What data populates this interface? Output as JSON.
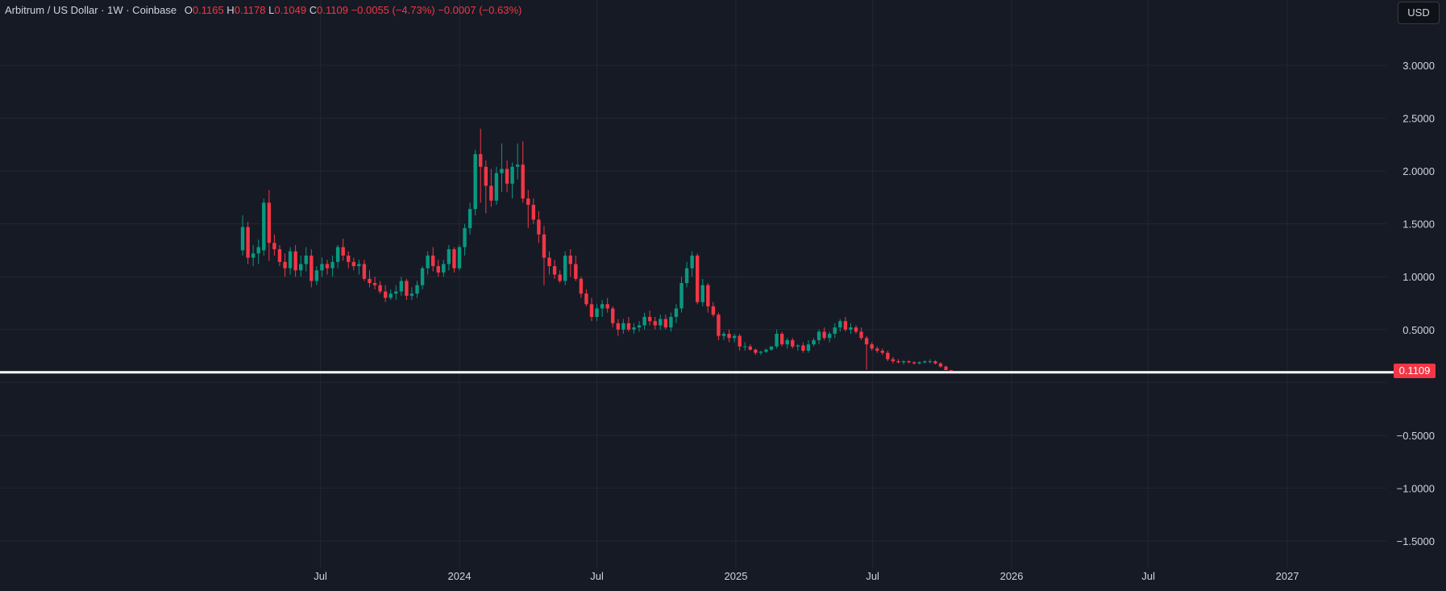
{
  "legend": {
    "symbol": "Arbitrum / US Dollar · 1W · Coinbase",
    "o_label": "O",
    "o_value": "0.1165",
    "h_label": "H",
    "h_value": "0.1178",
    "l_label": "L",
    "l_value": "0.1049",
    "c_label": "C",
    "c_value": "0.1109",
    "change": "−0.0055 (−4.73%)",
    "change2": "−0.0007 (−0.63%)"
  },
  "currency_button": "USD",
  "last_price_label": "0.1109",
  "colors": {
    "background": "#161a25",
    "up": "#089981",
    "down": "#f23645",
    "grid": "#232734",
    "price_line": "#ffffff"
  },
  "chart_data": {
    "type": "candlestick",
    "interval": "1W",
    "ylim": [
      -1.75,
      3.5
    ],
    "y_ticks": [
      "3.0000",
      "2.5000",
      "2.0000",
      "1.5000",
      "1.0000",
      "0.5000",
      "−0.5000",
      "−1.0000",
      "−1.5000"
    ],
    "y_tick_values": [
      3.0,
      2.5,
      2.0,
      1.5,
      1.0,
      0.5,
      -0.5,
      -1.0,
      -1.5
    ],
    "x_ticks": [
      {
        "label": "Jul",
        "date": "2023-07-01"
      },
      {
        "label": "2024",
        "date": "2024-01-01"
      },
      {
        "label": "Jul",
        "date": "2024-07-01"
      },
      {
        "label": "2025",
        "date": "2025-01-01"
      },
      {
        "label": "Jul",
        "date": "2025-07-01"
      },
      {
        "label": "2026",
        "date": "2026-01-01"
      },
      {
        "label": "Jul",
        "date": "2026-07-01"
      },
      {
        "label": "2027",
        "date": "2027-01-01"
      }
    ],
    "first_bar_date": "2023-03-20",
    "horizontal_line": 0.1109,
    "candles": [
      [
        1.25,
        1.58,
        1.2,
        1.47
      ],
      [
        1.47,
        1.52,
        1.12,
        1.18
      ],
      [
        1.18,
        1.3,
        1.1,
        1.22
      ],
      [
        1.22,
        1.35,
        1.12,
        1.28
      ],
      [
        1.25,
        1.74,
        1.2,
        1.7
      ],
      [
        1.7,
        1.82,
        1.15,
        1.32
      ],
      [
        1.32,
        1.4,
        1.2,
        1.26
      ],
      [
        1.26,
        1.3,
        1.1,
        1.14
      ],
      [
        1.14,
        1.22,
        1.0,
        1.08
      ],
      [
        1.08,
        1.28,
        1.02,
        1.24
      ],
      [
        1.24,
        1.3,
        1.0,
        1.06
      ],
      [
        1.06,
        1.2,
        1.0,
        1.12
      ],
      [
        1.12,
        1.28,
        1.05,
        1.2
      ],
      [
        1.2,
        1.26,
        0.9,
        0.96
      ],
      [
        0.96,
        1.1,
        0.92,
        1.06
      ],
      [
        1.06,
        1.18,
        1.0,
        1.12
      ],
      [
        1.12,
        1.16,
        1.02,
        1.08
      ],
      [
        1.08,
        1.2,
        1.0,
        1.14
      ],
      [
        1.14,
        1.3,
        1.08,
        1.28
      ],
      [
        1.28,
        1.36,
        1.15,
        1.2
      ],
      [
        1.2,
        1.24,
        1.08,
        1.14
      ],
      [
        1.14,
        1.18,
        1.06,
        1.1
      ],
      [
        1.1,
        1.16,
        1.02,
        1.12
      ],
      [
        1.12,
        1.16,
        0.96,
        0.98
      ],
      [
        0.98,
        1.06,
        0.9,
        0.94
      ],
      [
        0.94,
        1.0,
        0.88,
        0.92
      ],
      [
        0.92,
        0.96,
        0.84,
        0.86
      ],
      [
        0.86,
        0.92,
        0.76,
        0.8
      ],
      [
        0.8,
        0.88,
        0.78,
        0.84
      ],
      [
        0.84,
        0.92,
        0.78,
        0.86
      ],
      [
        0.86,
        1.0,
        0.82,
        0.96
      ],
      [
        0.96,
        0.98,
        0.78,
        0.82
      ],
      [
        0.82,
        0.9,
        0.78,
        0.84
      ],
      [
        0.84,
        0.96,
        0.8,
        0.92
      ],
      [
        0.92,
        1.1,
        0.88,
        1.08
      ],
      [
        1.08,
        1.24,
        1.02,
        1.2
      ],
      [
        1.2,
        1.28,
        1.05,
        1.1
      ],
      [
        1.1,
        1.16,
        1.0,
        1.04
      ],
      [
        1.04,
        1.16,
        1.0,
        1.12
      ],
      [
        1.12,
        1.3,
        1.06,
        1.26
      ],
      [
        1.26,
        1.28,
        1.04,
        1.08
      ],
      [
        1.08,
        1.3,
        1.06,
        1.28
      ],
      [
        1.28,
        1.5,
        1.2,
        1.46
      ],
      [
        1.46,
        1.7,
        1.4,
        1.64
      ],
      [
        1.64,
        2.2,
        1.58,
        2.16
      ],
      [
        2.16,
        2.4,
        1.7,
        2.04
      ],
      [
        2.04,
        2.1,
        1.6,
        1.86
      ],
      [
        1.86,
        2.02,
        1.66,
        1.72
      ],
      [
        1.72,
        2.04,
        1.68,
        1.98
      ],
      [
        1.98,
        2.26,
        1.8,
        2.02
      ],
      [
        2.02,
        2.1,
        1.8,
        1.88
      ],
      [
        1.88,
        2.08,
        1.74,
        2.04
      ],
      [
        2.04,
        2.26,
        1.92,
        2.06
      ],
      [
        2.06,
        2.28,
        1.7,
        1.74
      ],
      [
        1.74,
        1.82,
        1.46,
        1.68
      ],
      [
        1.68,
        1.74,
        1.5,
        1.54
      ],
      [
        1.54,
        1.62,
        1.32,
        1.4
      ],
      [
        1.4,
        1.48,
        0.92,
        1.18
      ],
      [
        1.18,
        1.24,
        1.02,
        1.1
      ],
      [
        1.1,
        1.16,
        0.98,
        1.02
      ],
      [
        1.02,
        1.06,
        0.94,
        0.96
      ],
      [
        0.96,
        1.24,
        0.92,
        1.2
      ],
      [
        1.2,
        1.26,
        1.0,
        1.12
      ],
      [
        1.12,
        1.2,
        0.96,
        0.98
      ],
      [
        0.98,
        1.0,
        0.8,
        0.84
      ],
      [
        0.84,
        0.88,
        0.72,
        0.74
      ],
      [
        0.74,
        0.8,
        0.58,
        0.62
      ],
      [
        0.62,
        0.74,
        0.58,
        0.7
      ],
      [
        0.7,
        0.78,
        0.62,
        0.74
      ],
      [
        0.74,
        0.8,
        0.66,
        0.7
      ],
      [
        0.7,
        0.72,
        0.52,
        0.56
      ],
      [
        0.56,
        0.6,
        0.44,
        0.5
      ],
      [
        0.5,
        0.6,
        0.46,
        0.56
      ],
      [
        0.56,
        0.62,
        0.48,
        0.5
      ],
      [
        0.5,
        0.56,
        0.46,
        0.52
      ],
      [
        0.52,
        0.58,
        0.48,
        0.54
      ],
      [
        0.54,
        0.66,
        0.5,
        0.62
      ],
      [
        0.62,
        0.68,
        0.54,
        0.58
      ],
      [
        0.58,
        0.62,
        0.5,
        0.54
      ],
      [
        0.54,
        0.64,
        0.5,
        0.6
      ],
      [
        0.6,
        0.64,
        0.5,
        0.52
      ],
      [
        0.52,
        0.66,
        0.48,
        0.62
      ],
      [
        0.62,
        0.74,
        0.56,
        0.7
      ],
      [
        0.7,
        1.0,
        0.66,
        0.94
      ],
      [
        0.94,
        1.14,
        0.9,
        1.08
      ],
      [
        1.08,
        1.24,
        1.0,
        1.2
      ],
      [
        1.2,
        1.22,
        0.74,
        0.76
      ],
      [
        0.76,
        0.98,
        0.72,
        0.92
      ],
      [
        0.92,
        0.94,
        0.66,
        0.72
      ],
      [
        0.72,
        0.76,
        0.62,
        0.64
      ],
      [
        0.64,
        0.66,
        0.4,
        0.44
      ],
      [
        0.44,
        0.48,
        0.4,
        0.46
      ],
      [
        0.46,
        0.5,
        0.38,
        0.42
      ],
      [
        0.42,
        0.46,
        0.38,
        0.44
      ],
      [
        0.44,
        0.46,
        0.3,
        0.34
      ],
      [
        0.34,
        0.38,
        0.3,
        0.34
      ],
      [
        0.34,
        0.36,
        0.3,
        0.31
      ],
      [
        0.31,
        0.32,
        0.26,
        0.28
      ],
      [
        0.28,
        0.3,
        0.26,
        0.29
      ],
      [
        0.29,
        0.32,
        0.28,
        0.31
      ],
      [
        0.31,
        0.34,
        0.3,
        0.34
      ],
      [
        0.34,
        0.5,
        0.32,
        0.46
      ],
      [
        0.46,
        0.48,
        0.34,
        0.36
      ],
      [
        0.36,
        0.42,
        0.32,
        0.4
      ],
      [
        0.4,
        0.42,
        0.32,
        0.34
      ],
      [
        0.34,
        0.36,
        0.3,
        0.35
      ],
      [
        0.35,
        0.38,
        0.28,
        0.3
      ],
      [
        0.3,
        0.4,
        0.28,
        0.36
      ],
      [
        0.36,
        0.42,
        0.34,
        0.4
      ],
      [
        0.4,
        0.5,
        0.36,
        0.48
      ],
      [
        0.48,
        0.52,
        0.4,
        0.42
      ],
      [
        0.42,
        0.48,
        0.38,
        0.46
      ],
      [
        0.46,
        0.56,
        0.42,
        0.52
      ],
      [
        0.52,
        0.6,
        0.48,
        0.58
      ],
      [
        0.58,
        0.62,
        0.48,
        0.5
      ],
      [
        0.5,
        0.56,
        0.46,
        0.52
      ],
      [
        0.52,
        0.54,
        0.46,
        0.48
      ],
      [
        0.48,
        0.52,
        0.4,
        0.42
      ],
      [
        0.42,
        0.44,
        0.12,
        0.36
      ],
      [
        0.36,
        0.38,
        0.3,
        0.32
      ],
      [
        0.32,
        0.34,
        0.28,
        0.3
      ],
      [
        0.3,
        0.32,
        0.26,
        0.28
      ],
      [
        0.28,
        0.3,
        0.2,
        0.22
      ],
      [
        0.22,
        0.24,
        0.18,
        0.2
      ],
      [
        0.2,
        0.22,
        0.18,
        0.19
      ],
      [
        0.19,
        0.21,
        0.17,
        0.2
      ],
      [
        0.2,
        0.21,
        0.18,
        0.19
      ],
      [
        0.19,
        0.2,
        0.17,
        0.18
      ],
      [
        0.18,
        0.2,
        0.17,
        0.19
      ],
      [
        0.19,
        0.21,
        0.18,
        0.2
      ],
      [
        0.2,
        0.22,
        0.18,
        0.2
      ],
      [
        0.2,
        0.21,
        0.17,
        0.18
      ],
      [
        0.18,
        0.19,
        0.14,
        0.15
      ],
      [
        0.15,
        0.16,
        0.12,
        0.1165
      ],
      [
        0.1165,
        0.1178,
        0.1049,
        0.1109
      ]
    ]
  }
}
